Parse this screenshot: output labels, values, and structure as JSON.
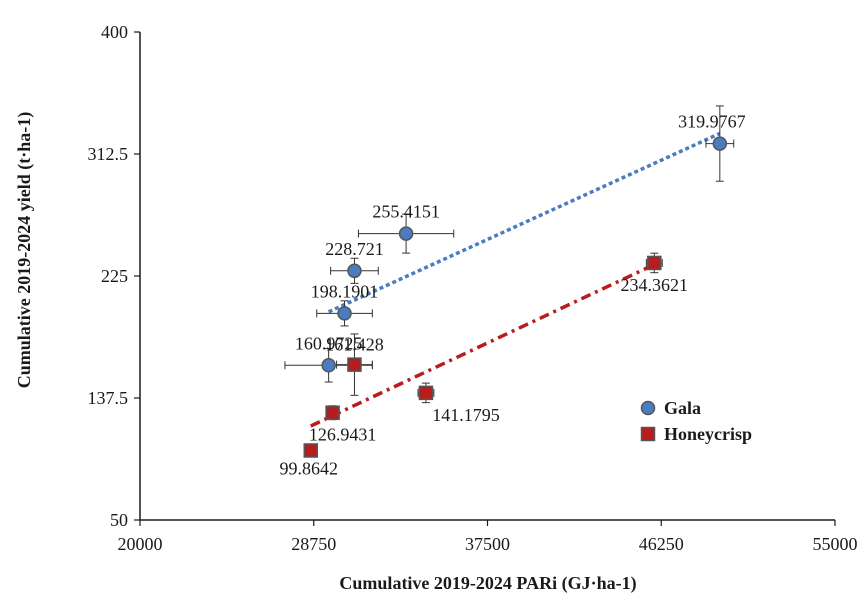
{
  "chart_data": {
    "type": "scatter",
    "title": "",
    "xlabel": "Cumulative 2019-2024 PARi (GJ·ha-1)",
    "ylabel": "Cumulative 2019-2024 yield (t·ha-1)",
    "xlim": [
      20000,
      55000
    ],
    "ylim": [
      50,
      400
    ],
    "x_ticks": [
      "20000",
      "28750",
      "37500",
      "46250",
      "55000"
    ],
    "y_ticks": [
      "50",
      "137.5",
      "225",
      "312.5",
      "400"
    ],
    "grid": false,
    "legend_position": "right",
    "series": [
      {
        "name": "Gala",
        "color": "#4a7cc2",
        "marker": "circle",
        "trendline": "dashed",
        "points": [
          {
            "x": 29500,
            "y": 160.9725,
            "label": "160.9725",
            "xerr": 2200,
            "yerr": 12
          },
          {
            "x": 30300,
            "y": 198.1901,
            "label": "198.1901",
            "xerr": 1400,
            "yerr": 9
          },
          {
            "x": 30800,
            "y": 228.721,
            "label": "228.721",
            "xerr": 1200,
            "yerr": 9
          },
          {
            "x": 33400,
            "y": 255.4151,
            "label": "255.4151",
            "xerr": 2400,
            "yerr": 14
          },
          {
            "x": 49200,
            "y": 319.9767,
            "label": "319.9767",
            "xerr": 700,
            "yerr": 27
          }
        ]
      },
      {
        "name": "Honeycrisp",
        "color": "#b81c1c",
        "marker": "square",
        "trendline": "dash-dot",
        "points": [
          {
            "x": 28600,
            "y": 99.8642,
            "label": "99.8642",
            "xerr": 0,
            "yerr": 3
          },
          {
            "x": 29700,
            "y": 126.9431,
            "label": "126.9431",
            "xerr": 300,
            "yerr": 5
          },
          {
            "x": 30800,
            "y": 161.428,
            "label": "161.428",
            "xerr": 900,
            "yerr": 22
          },
          {
            "x": 34400,
            "y": 141.1795,
            "label": "141.1795",
            "xerr": 400,
            "yerr": 7
          },
          {
            "x": 45900,
            "y": 234.3621,
            "label": "234.3621",
            "xerr": 400,
            "yerr": 7
          }
        ]
      }
    ]
  }
}
